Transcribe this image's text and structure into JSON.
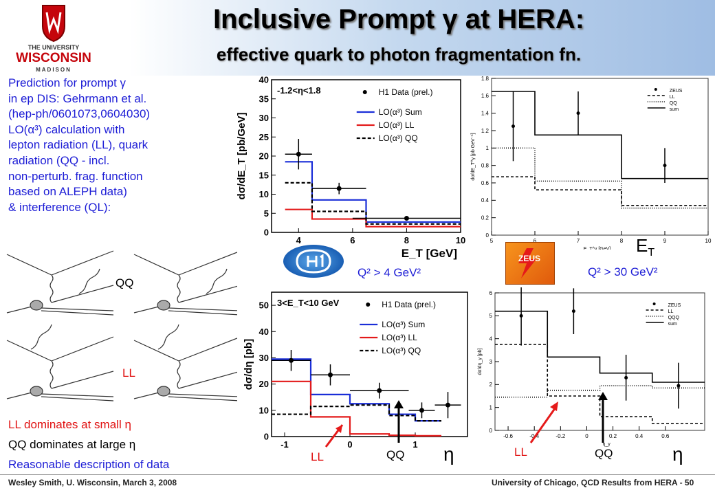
{
  "header": {
    "logo_text": [
      "THE UNIVERSITY",
      "WISCONSIN",
      "MADISON"
    ],
    "title": "Inclusive Prompt γ at HERA:",
    "subtitle": "effective quark to photon fragmentation fn."
  },
  "prediction": {
    "lines": [
      "Prediction for prompt γ",
      "in ep DIS: Gehrmann et al.",
      "(hep-ph/0601073,0604030)",
      "LO(α³) calculation with",
      "lepton radiation (LL), quark",
      "radiation (QQ - incl.",
      "non-perturb. frag. function",
      "based on ALEPH data)",
      "& interference (QL):"
    ]
  },
  "diagrams": {
    "label_qq": "QQ",
    "label_ll": "LL"
  },
  "conclusions": {
    "line1": "LL dominates at small η",
    "line2": "QQ dominates at large η",
    "line3": "Reasonable description of data"
  },
  "labels": {
    "h1_q2": "Q² > 4 GeV²",
    "zeus_q2": "Q² > 30 GeV²",
    "et_label": "E",
    "et_sub": "T",
    "eta": "η",
    "ll": "LL",
    "qq": "QQ",
    "zeus_logo": "ZEUS"
  },
  "footer": {
    "left": "Wesley Smith, U. Wisconsin, March 3, 2008",
    "right": "University of Chicago, QCD Results from HERA -  50"
  },
  "chart_data": [
    {
      "id": "h1_et",
      "type": "line",
      "ylabel": "dσ/dE_T [pb/GeV]",
      "xlabel": "E_T [GeV]",
      "cut": "-1.2<η<1.8",
      "xlim": [
        3,
        10
      ],
      "ylim": [
        0,
        40
      ],
      "xticks": [
        4,
        6,
        8,
        10
      ],
      "yticks": [
        0,
        5,
        10,
        15,
        20,
        25,
        30,
        35,
        40
      ],
      "legend": [
        "H1 Data (prel.)",
        "LO(α³) Sum",
        "LO(α³) LL",
        "LO(α³) QQ"
      ],
      "edges": [
        3.5,
        4.5,
        6.5,
        10
      ],
      "series": [
        {
          "name": "LO(α³) Sum",
          "color": "#1a2ed8",
          "dash": "",
          "values": [
            18.5,
            8.5,
            2.7
          ]
        },
        {
          "name": "LO(α³) LL",
          "color": "#e31a1a",
          "dash": "",
          "values": [
            6,
            3.5,
            1.5
          ]
        },
        {
          "name": "LO(α³) QQ",
          "color": "#000000",
          "dash": "5,3",
          "values": [
            13,
            5.5,
            2.2
          ]
        }
      ],
      "data": [
        {
          "x": 4,
          "y": 20.5,
          "xerr": 0.5,
          "yerr": 4
        },
        {
          "x": 5.5,
          "y": 11.5,
          "xerr": 1,
          "yerr": 1.5
        },
        {
          "x": 8,
          "y": 3.7,
          "xerr": 2,
          "yerr": 0.5
        }
      ]
    },
    {
      "id": "zeus_et",
      "type": "line",
      "ylabel": "dσ/dE_T^γ [pb GeV⁻¹]",
      "xlabel": "E_T^γ [GeV]",
      "xlim": [
        5,
        10
      ],
      "ylim": [
        0,
        1.8
      ],
      "xticks": [
        5,
        6,
        7,
        8,
        9,
        10
      ],
      "yticks": [
        0,
        0.2,
        0.4,
        0.6,
        0.8,
        1,
        1.2,
        1.4,
        1.6,
        1.8
      ],
      "legend": [
        "ZEUS",
        "LL",
        "QQ",
        "sum"
      ],
      "edges": [
        5,
        6,
        8,
        10
      ],
      "series": [
        {
          "name": "sum",
          "color": "#000000",
          "dash": "",
          "values": [
            1.65,
            1.15,
            0.65
          ]
        },
        {
          "name": "LL",
          "color": "#000000",
          "dash": "4,3",
          "values": [
            0.67,
            0.52,
            0.34
          ]
        },
        {
          "name": "QQ",
          "color": "#000000",
          "dash": "1,2",
          "values": [
            1,
            0.62,
            0.31
          ]
        }
      ],
      "data": [
        {
          "x": 5.5,
          "y": 1.25,
          "xerr": 0,
          "yerr": 0.4
        },
        {
          "x": 7,
          "y": 1.4,
          "xerr": 0,
          "yerr": 0.25
        },
        {
          "x": 9,
          "y": 0.8,
          "xerr": 0,
          "yerr": 0.2
        }
      ]
    },
    {
      "id": "h1_eta",
      "type": "line",
      "ylabel": "dσ/dη [pb]",
      "xlabel": "",
      "cut": "3<E_T<10 GeV",
      "xlim": [
        -1.2,
        1.8
      ],
      "ylim": [
        0,
        55
      ],
      "xticks": [
        -1,
        0,
        1
      ],
      "yticks": [
        0,
        10,
        20,
        30,
        40,
        50
      ],
      "legend": [
        "H1 Data (prel.)",
        "LO(α³) Sum",
        "LO(α³) LL",
        "LO(α³) QQ"
      ],
      "edges": [
        -1.2,
        -0.6,
        0,
        0.6,
        1.0,
        1.4,
        1.8
      ],
      "series": [
        {
          "name": "LO(α³) Sum",
          "color": "#1a2ed8",
          "dash": "",
          "values": [
            29.5,
            16,
            12.5,
            8.5,
            6
          ]
        },
        {
          "name": "LO(α³) LL",
          "color": "#e31a1a",
          "dash": "",
          "values": [
            21,
            7.5,
            1,
            0.5,
            0.3
          ]
        },
        {
          "name": "LO(α³) QQ",
          "color": "#000000",
          "dash": "5,3",
          "values": [
            8.5,
            11.5,
            12,
            8,
            6
          ]
        }
      ],
      "data": [
        {
          "x": -0.9,
          "y": 29,
          "xerr": 0.3,
          "yerr": 4
        },
        {
          "x": -0.3,
          "y": 23.5,
          "xerr": 0.3,
          "yerr": 4
        },
        {
          "x": 0.45,
          "y": 17.5,
          "xerr": 0.45,
          "yerr": 3
        },
        {
          "x": 1.1,
          "y": 10,
          "xerr": 0.2,
          "yerr": 3
        },
        {
          "x": 1.5,
          "y": 12,
          "xerr": 0.2,
          "yerr": 5
        }
      ]
    },
    {
      "id": "zeus_eta",
      "type": "line",
      "ylabel": "dσ/dη_γ [pb]",
      "xlabel": "η_γ",
      "xlim": [
        -0.7,
        0.9
      ],
      "ylim": [
        0,
        6
      ],
      "xticks": [
        -0.6,
        -0.4,
        -0.2,
        0,
        0.2,
        0.4,
        0.6
      ],
      "yticks": [
        0,
        1,
        2,
        3,
        4,
        5,
        6
      ],
      "legend": [
        "ZEUS",
        "LL",
        "QQQ",
        "sum"
      ],
      "edges": [
        -0.7,
        -0.3,
        0.1,
        0.5,
        0.9
      ],
      "series": [
        {
          "name": "sum",
          "color": "#000000",
          "dash": "",
          "values": [
            5.2,
            3.2,
            2.5,
            2.1
          ]
        },
        {
          "name": "LL",
          "color": "#000000",
          "dash": "4,3",
          "values": [
            3.75,
            1.5,
            0.6,
            0.3
          ]
        },
        {
          "name": "QQQ",
          "color": "#000000",
          "dash": "1,2",
          "values": [
            1.45,
            1.75,
            1.95,
            1.85
          ]
        }
      ],
      "data": [
        {
          "x": -0.5,
          "y": 5,
          "xerr": 0,
          "yerr": 1.3
        },
        {
          "x": -0.1,
          "y": 5.2,
          "xerr": 0,
          "yerr": 1
        },
        {
          "x": 0.3,
          "y": 2.3,
          "xerr": 0,
          "yerr": 1
        },
        {
          "x": 0.7,
          "y": 1.95,
          "xerr": 0,
          "yerr": 1
        }
      ]
    }
  ]
}
